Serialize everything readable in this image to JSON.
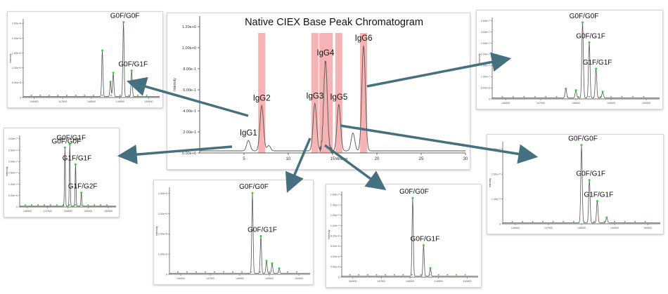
{
  "colors": {
    "trace": "#555555",
    "highlight": "#f4a6a6",
    "arrow": "#44707f",
    "peak_marker": "#33cc33",
    "text": "#111111"
  },
  "chart_data": [
    {
      "id": "main",
      "type": "line",
      "title": "Native CIEX Base Peak Chromatogram",
      "xlabel": "Minutes",
      "ylabel": "Intensity",
      "xlim": [
        0,
        30
      ],
      "ylim": [
        0,
        1.3
      ],
      "x_ticks": [
        "5",
        "10",
        "15",
        "20",
        "25",
        "30"
      ],
      "y_ticks": [
        "0.00e+0",
        "2.00e-1",
        "4.00e-1",
        "6.00e-1",
        "8.00e-1",
        "1.00e+0",
        "1.20e+0"
      ],
      "peaks": [
        {
          "x": 5.5,
          "y": 0.1,
          "label": "IgG1"
        },
        {
          "x": 7.0,
          "y": 0.43,
          "label": "IgG2"
        },
        {
          "x": 7.8,
          "y": 0.05,
          "label": ""
        },
        {
          "x": 13.0,
          "y": 0.45,
          "label": "IgG3"
        },
        {
          "x": 14.2,
          "y": 0.86,
          "label": "IgG4"
        },
        {
          "x": 15.7,
          "y": 0.44,
          "label": "IgG5"
        },
        {
          "x": 17.3,
          "y": 0.17,
          "label": ""
        },
        {
          "x": 18.5,
          "y": 1.0,
          "label": "IgG6"
        }
      ],
      "highlights": [
        [
          6.6,
          7.4
        ],
        [
          12.6,
          13.4
        ],
        [
          13.5,
          15.0
        ],
        [
          15.3,
          16.1
        ],
        [
          18.1,
          18.9
        ]
      ]
    },
    {
      "id": "igg2",
      "type": "line",
      "ylabel": "Intensity",
      "y_ticks": [
        "0",
        "5.00e+5",
        "1.00e+6",
        "1.50e+6",
        "2.00e+6",
        "2.50e+6"
      ],
      "x_ticks": [
        "146500",
        "147500",
        "148500",
        "149500",
        "150500"
      ],
      "peaks": [
        {
          "x": 0.58,
          "y": 0.62,
          "label": ""
        },
        {
          "x": 0.64,
          "y": 0.2,
          "label": ""
        },
        {
          "x": 0.66,
          "y": 0.32,
          "label": ""
        },
        {
          "x": 0.735,
          "y": 1.0,
          "label": "G0F/G0F"
        },
        {
          "x": 0.795,
          "y": 0.35,
          "label": "G0F/G1F"
        }
      ]
    },
    {
      "id": "igg1",
      "type": "line",
      "ylabel": "Intensity",
      "y_ticks": [
        "0",
        "5.00e+6",
        "1.00e+7",
        "1.50e+7",
        "2.00e+7",
        "2.50e+7",
        "3.00e+7"
      ],
      "x_ticks": [
        "146500",
        "147500",
        "148500",
        "149500",
        "150500"
      ],
      "peaks": [
        {
          "x": 0.47,
          "y": 0.87,
          "label": "G0F/G0F"
        },
        {
          "x": 0.52,
          "y": 0.92,
          "label": "G0F/G1F"
        },
        {
          "x": 0.58,
          "y": 0.62,
          "label": "G1F/G1F"
        },
        {
          "x": 0.64,
          "y": 0.2,
          "label": "G1F/G2F"
        }
      ]
    },
    {
      "id": "igg3",
      "type": "line",
      "ylabel": "Intensity",
      "y_ticks": [
        "0",
        "1.00e+6",
        "2.00e+6",
        "3.00e+6",
        "4.00e+6"
      ],
      "x_ticks": [
        "146500",
        "147500",
        "148500",
        "149500",
        "150500"
      ],
      "peaks": [
        {
          "x": 0.59,
          "y": 0.97,
          "label": "G0F/G0F"
        },
        {
          "x": 0.65,
          "y": 0.45,
          "label": "G0F/G1F"
        },
        {
          "x": 0.69,
          "y": 0.15,
          "label": ""
        },
        {
          "x": 0.73,
          "y": 0.12,
          "label": ""
        },
        {
          "x": 0.78,
          "y": 0.06,
          "label": ""
        }
      ]
    },
    {
      "id": "igg4",
      "type": "line",
      "ylabel": "Intensity",
      "y_ticks": [
        "0",
        "2.00e+6",
        "4.00e+6",
        "6.00e+6",
        "8.00e+6",
        "1.00e+7",
        "1.20e+7",
        "1.40e+7",
        "1.60e+7"
      ],
      "x_ticks": [
        "146500",
        "147500",
        "148500",
        "149500",
        "150500"
      ],
      "peaks": [
        {
          "x": 0.52,
          "y": 0.96,
          "label": "G0F/G0F"
        },
        {
          "x": 0.6,
          "y": 0.38,
          "label": "G0F/G1F"
        },
        {
          "x": 0.65,
          "y": 0.1,
          "label": ""
        }
      ]
    },
    {
      "id": "igg6",
      "type": "line",
      "ylabel": "Intensity",
      "y_ticks": [
        "0",
        "5.00e+6",
        "1.00e+7",
        "1.50e+7",
        "2.00e+7",
        "2.50e+7",
        "3.00e+7",
        "3.50e+7"
      ],
      "x_ticks": [
        "146500",
        "147500",
        "148500",
        "149500",
        "150500"
      ],
      "peaks": [
        {
          "x": 0.44,
          "y": 0.12,
          "label": ""
        },
        {
          "x": 0.5,
          "y": 0.1,
          "label": ""
        },
        {
          "x": 0.54,
          "y": 0.98,
          "label": "G0F/G0F"
        },
        {
          "x": 0.58,
          "y": 0.72,
          "label": "G0F/G1F"
        },
        {
          "x": 0.62,
          "y": 0.38,
          "label": "G1F/G1F"
        },
        {
          "x": 0.66,
          "y": 0.08,
          "label": ""
        }
      ]
    },
    {
      "id": "igg5",
      "type": "line",
      "ylabel": "Intensity",
      "y_ticks": [
        "0",
        "1.00e+7",
        "2.00e+7",
        "3.00e+7"
      ],
      "x_ticks": [
        "146500",
        "147500",
        "148500",
        "149500",
        "150500"
      ],
      "peaks": [
        {
          "x": 0.5,
          "y": 1.0,
          "label": "G0F/G0F"
        },
        {
          "x": 0.55,
          "y": 0.55,
          "label": "G0F/G1F"
        },
        {
          "x": 0.6,
          "y": 0.28,
          "label": "G1F/G1F"
        },
        {
          "x": 0.66,
          "y": 0.07,
          "label": ""
        }
      ]
    }
  ]
}
